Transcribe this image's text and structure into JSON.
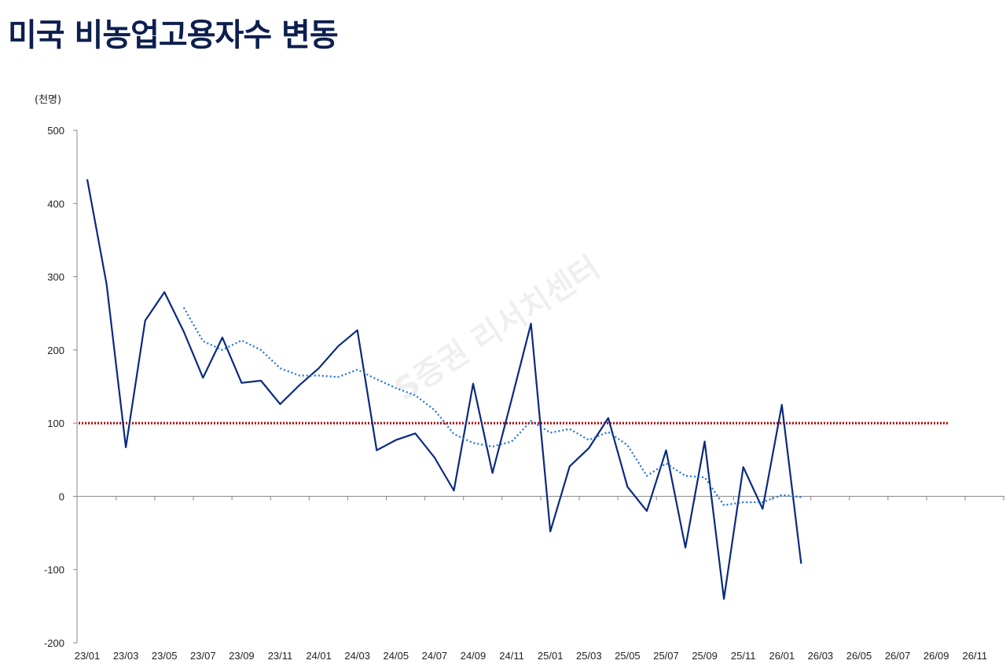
{
  "title": "미국 비농업고용자수 변동",
  "unit_label": "(천명)",
  "watermark": "S증권 리서치센터",
  "colors": {
    "title": "#0d1f4f",
    "series_main": "#0a2a80",
    "series_avg": "#1f6fd6",
    "reference": "#b00000",
    "axis": "#888888"
  },
  "chart_data": {
    "type": "line",
    "ylim": [
      -200,
      500
    ],
    "yticks": [
      500,
      400,
      300,
      200,
      100,
      0,
      -100,
      -200
    ],
    "x_tick_labels": [
      "23/01",
      "23/03",
      "23/05",
      "23/07",
      "23/09",
      "23/11",
      "24/01",
      "24/03",
      "24/05",
      "24/07",
      "24/09",
      "24/11",
      "25/01",
      "25/03",
      "25/05",
      "25/07",
      "25/09",
      "25/11",
      "26/01",
      "26/03",
      "26/05",
      "26/07",
      "26/09",
      "26/11"
    ],
    "reference_line": {
      "value": 100,
      "style": "dotted"
    },
    "series": [
      {
        "style": "solid",
        "start_index": 0,
        "values": [
          433,
          290,
          67,
          240,
          279,
          225,
          162,
          217,
          155,
          158,
          126,
          152,
          175,
          205,
          227,
          63,
          77,
          86,
          53,
          8,
          154,
          32,
          133,
          236,
          -48,
          41,
          66,
          107,
          13,
          -20,
          63,
          -70,
          75,
          -140,
          40,
          -17,
          125,
          -92
        ]
      },
      {
        "style": "dotted",
        "start_index": 5,
        "values": [
          258,
          212,
          200,
          213,
          200,
          175,
          165,
          165,
          163,
          173,
          160,
          148,
          138,
          118,
          85,
          73,
          68,
          75,
          103,
          87,
          92,
          77,
          88,
          70,
          28,
          45,
          28,
          26,
          -12,
          -8,
          -8,
          2,
          -1
        ]
      }
    ]
  }
}
